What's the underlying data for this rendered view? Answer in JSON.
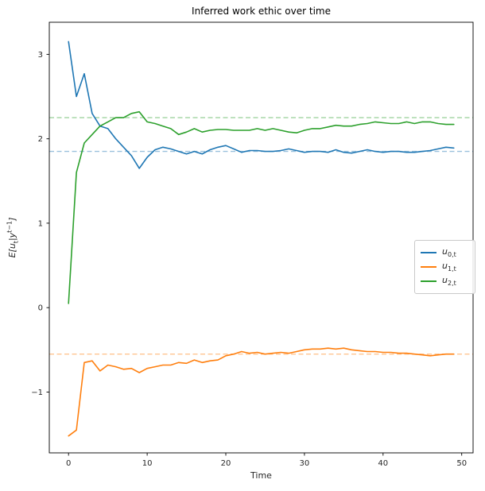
{
  "labels": {
    "ylabel_parts": {
      "p1": "E[u",
      "sub1": "t",
      "p2": "|y",
      "sup1": "t−1",
      "p3": "]"
    }
  },
  "legend": {
    "position": "center right",
    "items": [
      {
        "var": "u",
        "sub": "0,t",
        "color": "#1f77b4"
      },
      {
        "var": "u",
        "sub": "1,t",
        "color": "#ff7f0e"
      },
      {
        "var": "u",
        "sub": "2,t",
        "color": "#2ca02c"
      }
    ]
  },
  "chart_data": {
    "type": "line",
    "title": "Inferred work ethic over time",
    "xlabel": "Time",
    "ylabel": "E[u_t | y^(t-1)]",
    "xlim": [
      -2.45,
      51.45
    ],
    "ylim": [
      -1.72,
      3.38
    ],
    "xticks": [
      0,
      10,
      20,
      30,
      40,
      50
    ],
    "yticks": [
      -1,
      0,
      1,
      2,
      3
    ],
    "grid": false,
    "legend_position": "center right",
    "x": [
      0,
      1,
      2,
      3,
      4,
      5,
      6,
      7,
      8,
      9,
      10,
      11,
      12,
      13,
      14,
      15,
      16,
      17,
      18,
      19,
      20,
      21,
      22,
      23,
      24,
      25,
      26,
      27,
      28,
      29,
      30,
      31,
      32,
      33,
      34,
      35,
      36,
      37,
      38,
      39,
      40,
      41,
      42,
      43,
      44,
      45,
      46,
      47,
      48,
      49
    ],
    "series": [
      {
        "name": "u_{0,t}",
        "color": "#1f77b4",
        "values": [
          3.15,
          2.5,
          2.77,
          2.3,
          2.15,
          2.12,
          2.0,
          1.9,
          1.8,
          1.65,
          1.78,
          1.87,
          1.9,
          1.88,
          1.85,
          1.82,
          1.85,
          1.82,
          1.87,
          1.9,
          1.92,
          1.88,
          1.84,
          1.86,
          1.86,
          1.85,
          1.85,
          1.86,
          1.88,
          1.86,
          1.84,
          1.85,
          1.85,
          1.84,
          1.87,
          1.84,
          1.83,
          1.85,
          1.87,
          1.85,
          1.84,
          1.85,
          1.85,
          1.84,
          1.84,
          1.85,
          1.86,
          1.88,
          1.9,
          1.89
        ]
      },
      {
        "name": "u_{1,t}",
        "color": "#ff7f0e",
        "values": [
          -1.52,
          -1.45,
          -0.65,
          -0.63,
          -0.75,
          -0.68,
          -0.7,
          -0.73,
          -0.72,
          -0.77,
          -0.72,
          -0.7,
          -0.68,
          -0.68,
          -0.65,
          -0.66,
          -0.62,
          -0.65,
          -0.63,
          -0.62,
          -0.57,
          -0.55,
          -0.52,
          -0.54,
          -0.53,
          -0.55,
          -0.54,
          -0.53,
          -0.54,
          -0.52,
          -0.5,
          -0.49,
          -0.49,
          -0.48,
          -0.49,
          -0.48,
          -0.5,
          -0.51,
          -0.52,
          -0.52,
          -0.53,
          -0.53,
          -0.54,
          -0.54,
          -0.55,
          -0.56,
          -0.57,
          -0.56,
          -0.55,
          -0.55
        ]
      },
      {
        "name": "u_{2,t}",
        "color": "#2ca02c",
        "values": [
          0.05,
          1.6,
          1.95,
          2.05,
          2.15,
          2.2,
          2.25,
          2.25,
          2.3,
          2.32,
          2.2,
          2.18,
          2.15,
          2.12,
          2.05,
          2.08,
          2.12,
          2.08,
          2.1,
          2.11,
          2.11,
          2.1,
          2.1,
          2.1,
          2.12,
          2.1,
          2.12,
          2.1,
          2.08,
          2.07,
          2.1,
          2.12,
          2.12,
          2.14,
          2.16,
          2.15,
          2.15,
          2.17,
          2.18,
          2.2,
          2.19,
          2.18,
          2.18,
          2.2,
          2.18,
          2.2,
          2.2,
          2.18,
          2.17,
          2.17
        ]
      }
    ],
    "dashed_reference_lines": [
      {
        "y": 1.85,
        "color": "#1f77b4"
      },
      {
        "y": -0.55,
        "color": "#ff7f0e"
      },
      {
        "y": 2.25,
        "color": "#2ca02c"
      }
    ]
  }
}
